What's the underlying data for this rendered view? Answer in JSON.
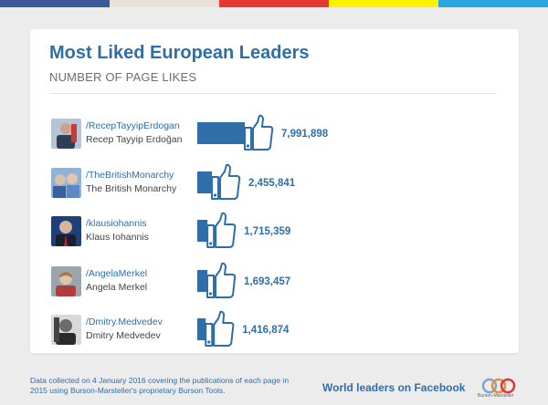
{
  "colors": {
    "strip": [
      "#3b5998",
      "#5b7bc0",
      "#e9e0d6",
      "#e53935",
      "#fff200",
      "#29a8df"
    ],
    "accent": "#2f6ea9",
    "bar": "#2f6ea9"
  },
  "header": {
    "title": "Most Liked European Leaders",
    "subtitle": "NUMBER OF PAGE LIKES"
  },
  "chart_data": {
    "type": "bar",
    "orientation": "horizontal",
    "title": "Most Liked European Leaders",
    "subtitle": "NUMBER OF PAGE LIKES",
    "categories": [
      "Recep Tayyip Erdoğan",
      "The British Monarchy",
      "Klaus Iohannis",
      "Angela Merkel",
      "Dmitry Medvedev"
    ],
    "values": [
      7991898,
      2455841,
      1715359,
      1693457,
      1416874
    ],
    "value_labels": [
      "7,991,898",
      "2,455,841",
      "1,715,359",
      "1,693,457",
      "1,416,874"
    ],
    "grid": false,
    "legend": "none"
  },
  "leaders": [
    {
      "handle": "/RecepTayyipErdogan",
      "name": "Recep Tayyip Erdoğan",
      "avatar": "avatar-erdogan"
    },
    {
      "handle": "/TheBritishMonarchy",
      "name": "The British Monarchy",
      "avatar": "avatar-monarchy"
    },
    {
      "handle": "/klausiohannis",
      "name": "Klaus Iohannis",
      "avatar": "avatar-iohannis"
    },
    {
      "handle": "/AngelaMerkel",
      "name": "Angela Merkel",
      "avatar": "avatar-merkel"
    },
    {
      "handle": "/Dmitry.Medvedev",
      "name": "Dmitry Medvedev",
      "avatar": "avatar-medvedev"
    }
  ],
  "footer": {
    "note": "Data collected on 4 January 2016 covering the publications of each page in 2015 using Burson-Marsteller's proprietary Burson Tools.",
    "tagline": "World leaders on Facebook",
    "logo_text": "Burson-Marsteller"
  },
  "icons": {
    "bar_end": "thumbs-up-icon"
  }
}
